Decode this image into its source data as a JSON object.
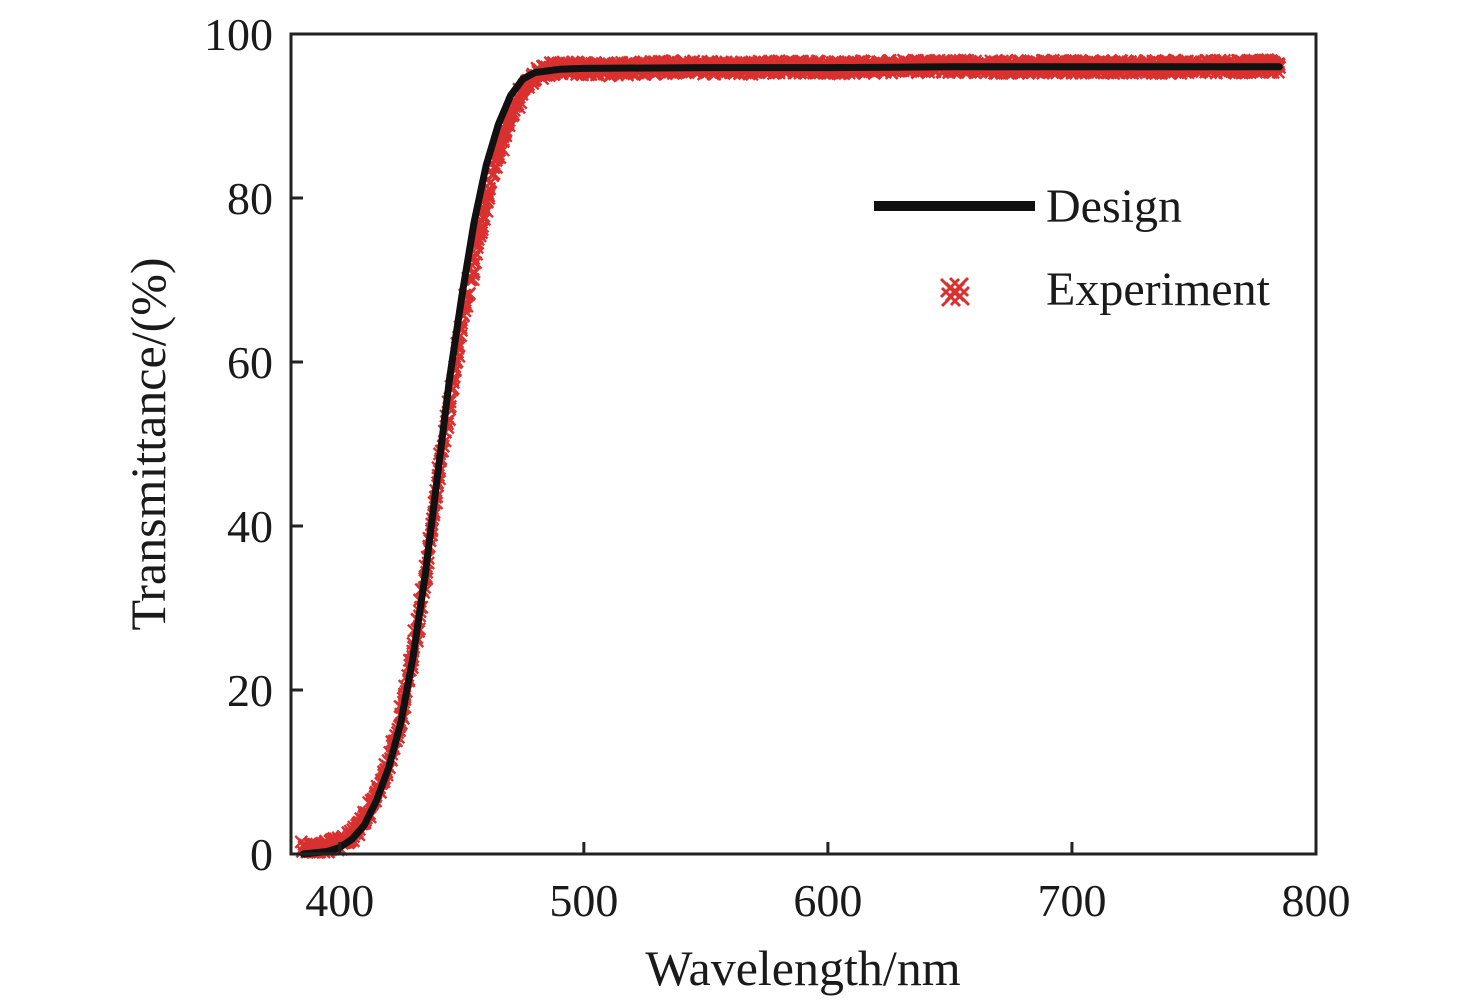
{
  "chart_data": {
    "type": "line",
    "title": "",
    "xlabel": "Wavelength/nm",
    "ylabel": "Transmittance/(%)",
    "xlim": [
      380,
      800
    ],
    "ylim": [
      0,
      100
    ],
    "xticks": [
      400,
      500,
      600,
      700,
      800
    ],
    "yticks": [
      0,
      20,
      40,
      60,
      80,
      100
    ],
    "grid": false,
    "legend_position": "top-right",
    "series": [
      {
        "name": "Design",
        "style": "line",
        "color": "#111111",
        "points": [
          [
            385,
            0
          ],
          [
            395,
            0.3
          ],
          [
            400,
            0.8
          ],
          [
            405,
            1.8
          ],
          [
            410,
            3.5
          ],
          [
            415,
            6.5
          ],
          [
            420,
            10.5
          ],
          [
            425,
            16
          ],
          [
            430,
            24
          ],
          [
            435,
            34
          ],
          [
            440,
            46
          ],
          [
            445,
            58
          ],
          [
            450,
            68
          ],
          [
            455,
            77
          ],
          [
            460,
            84
          ],
          [
            465,
            89
          ],
          [
            470,
            92.5
          ],
          [
            475,
            94.5
          ],
          [
            480,
            95.3
          ],
          [
            490,
            95.7
          ],
          [
            500,
            95.8
          ],
          [
            550,
            95.9
          ],
          [
            600,
            95.9
          ],
          [
            650,
            96
          ],
          [
            700,
            96
          ],
          [
            750,
            96
          ],
          [
            785,
            96
          ]
        ]
      },
      {
        "name": "Experiment",
        "style": "scatter",
        "color": "#d93030",
        "points": [
          [
            385,
            0.8
          ],
          [
            390,
            0.5
          ],
          [
            395,
            0.9
          ],
          [
            400,
            1.3
          ],
          [
            405,
            2.3
          ],
          [
            410,
            4.2
          ],
          [
            415,
            7.2
          ],
          [
            420,
            11.2
          ],
          [
            425,
            16.8
          ],
          [
            430,
            24.5
          ],
          [
            435,
            34
          ],
          [
            440,
            45
          ],
          [
            445,
            55.5
          ],
          [
            450,
            64.5
          ],
          [
            455,
            72.5
          ],
          [
            460,
            79.5
          ],
          [
            465,
            85.5
          ],
          [
            470,
            90
          ],
          [
            475,
            93.2
          ],
          [
            480,
            95
          ],
          [
            485,
            95.7
          ],
          [
            490,
            95.9
          ],
          [
            495,
            95.8
          ],
          [
            500,
            95.8
          ],
          [
            510,
            95.7
          ],
          [
            520,
            95.8
          ],
          [
            530,
            95.9
          ],
          [
            540,
            96
          ],
          [
            550,
            95.9
          ],
          [
            560,
            95.8
          ],
          [
            570,
            95.9
          ],
          [
            580,
            96
          ],
          [
            590,
            96
          ],
          [
            600,
            95.9
          ],
          [
            610,
            95.9
          ],
          [
            620,
            96
          ],
          [
            630,
            96
          ],
          [
            640,
            96
          ],
          [
            650,
            96.1
          ],
          [
            660,
            96
          ],
          [
            670,
            96
          ],
          [
            680,
            96
          ],
          [
            690,
            96
          ],
          [
            700,
            96
          ],
          [
            710,
            96
          ],
          [
            720,
            96
          ],
          [
            730,
            96
          ],
          [
            740,
            96
          ],
          [
            750,
            96
          ],
          [
            760,
            96
          ],
          [
            770,
            96
          ],
          [
            780,
            96.1
          ],
          [
            785,
            96
          ]
        ]
      }
    ]
  }
}
